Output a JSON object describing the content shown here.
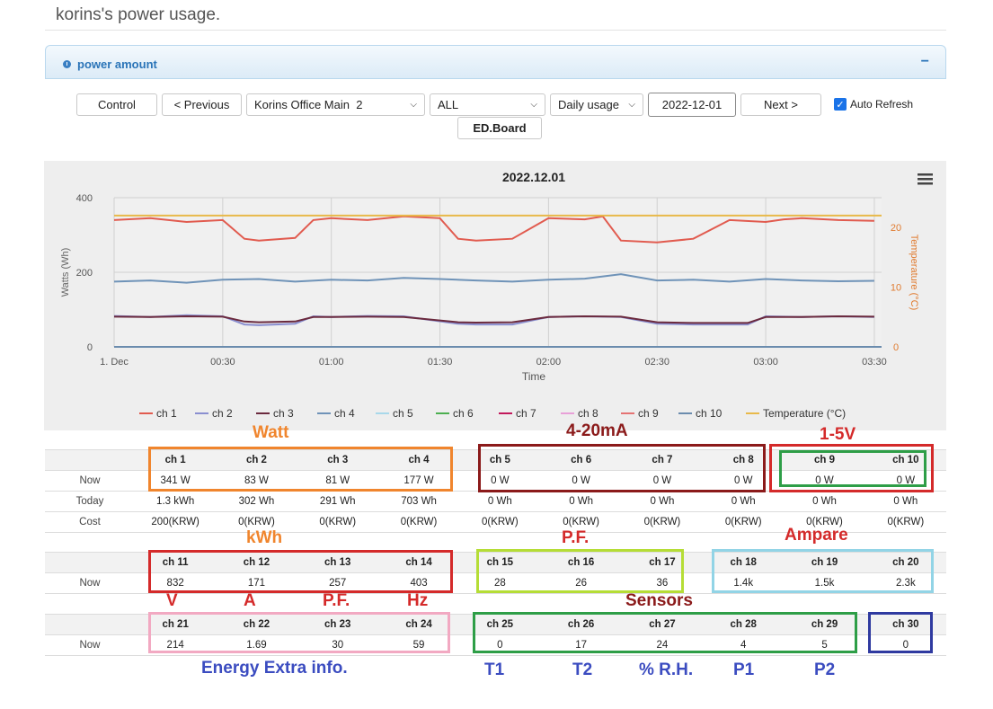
{
  "page": {
    "title": "korins's power usage."
  },
  "panel": {
    "title": "power amount",
    "collapse": "−"
  },
  "controls": {
    "control": "Control",
    "previous": "< Previous",
    "site": "Korins Office Main  2",
    "channel": "ALL",
    "mode": "Daily usage",
    "date": "2022-12-01",
    "next": "Next >",
    "auto_refresh": "Auto Refresh",
    "auto_refresh_checked": true,
    "edboard": "ED.Board"
  },
  "chart_data": {
    "type": "line",
    "title": "2022.12.01",
    "xlabel": "Time",
    "ylabel": "Watts (Wh)",
    "y2label": "Temperature (°C)",
    "x_ticks": [
      "1. Dec",
      "00:30",
      "01:00",
      "01:30",
      "02:00",
      "02:30",
      "03:00",
      "03:30"
    ],
    "y_ticks": [
      0,
      200,
      400
    ],
    "y2_ticks": [
      0,
      10,
      20
    ],
    "ylim": [
      0,
      400
    ],
    "y2lim": [
      0,
      25
    ],
    "xlim_minutes": [
      0,
      212
    ],
    "grid": true,
    "legend_position": "bottom",
    "series": [
      {
        "name": "ch 1",
        "color": "#e15b4f",
        "axis": "left",
        "x": [
          0,
          10,
          20,
          30,
          36,
          40,
          50,
          55,
          60,
          70,
          80,
          90,
          95,
          100,
          110,
          120,
          130,
          135,
          140,
          150,
          160,
          170,
          180,
          185,
          190,
          200,
          210
        ],
        "y": [
          340,
          345,
          335,
          340,
          290,
          285,
          292,
          340,
          345,
          340,
          350,
          345,
          290,
          285,
          290,
          345,
          342,
          350,
          285,
          280,
          290,
          340,
          335,
          342,
          345,
          340,
          338
        ]
      },
      {
        "name": "ch 2",
        "color": "#8a8fd0",
        "axis": "left",
        "x": [
          0,
          10,
          20,
          30,
          36,
          40,
          50,
          55,
          60,
          70,
          80,
          95,
          100,
          110,
          120,
          130,
          140,
          150,
          160,
          175,
          180,
          190,
          200,
          210
        ],
        "y": [
          83,
          80,
          85,
          82,
          60,
          58,
          62,
          82,
          80,
          83,
          82,
          62,
          60,
          60,
          80,
          82,
          80,
          62,
          60,
          60,
          82,
          80,
          82,
          80
        ]
      },
      {
        "name": "ch 3",
        "color": "#6b2a3e",
        "axis": "left",
        "x": [
          0,
          10,
          20,
          30,
          36,
          40,
          50,
          55,
          60,
          70,
          80,
          95,
          100,
          110,
          120,
          130,
          140,
          150,
          160,
          175,
          180,
          190,
          200,
          210
        ],
        "y": [
          81,
          80,
          82,
          81,
          68,
          66,
          68,
          80,
          80,
          81,
          80,
          66,
          65,
          66,
          80,
          82,
          81,
          66,
          64,
          64,
          80,
          80,
          82,
          81
        ]
      },
      {
        "name": "ch 4",
        "color": "#6f93b8",
        "axis": "left",
        "x": [
          0,
          10,
          20,
          30,
          40,
          50,
          60,
          70,
          80,
          90,
          100,
          110,
          120,
          130,
          140,
          150,
          160,
          170,
          180,
          190,
          200,
          210
        ],
        "y": [
          175,
          178,
          172,
          180,
          182,
          175,
          180,
          178,
          185,
          182,
          178,
          175,
          180,
          183,
          195,
          178,
          180,
          175,
          182,
          178,
          176,
          177
        ]
      },
      {
        "name": "ch 5",
        "color": "#a8d8ea",
        "axis": "left",
        "x": [
          0,
          212
        ],
        "y": [
          0,
          0
        ]
      },
      {
        "name": "ch 6",
        "color": "#4caf50",
        "axis": "left",
        "x": [
          0,
          212
        ],
        "y": [
          0,
          0
        ]
      },
      {
        "name": "ch 7",
        "color": "#c2185b",
        "axis": "left",
        "x": [
          0,
          212
        ],
        "y": [
          0,
          0
        ]
      },
      {
        "name": "ch 8",
        "color": "#e8a0d8",
        "axis": "left",
        "x": [
          0,
          212
        ],
        "y": [
          0,
          0
        ]
      },
      {
        "name": "ch 9",
        "color": "#e57373",
        "axis": "left",
        "x": [
          0,
          212
        ],
        "y": [
          0,
          0
        ]
      },
      {
        "name": "ch 10",
        "color": "#6b8cae",
        "axis": "left",
        "x": [
          0,
          212
        ],
        "y": [
          0,
          0
        ]
      },
      {
        "name": "Temperature (°C)",
        "color": "#e8b94a",
        "axis": "right",
        "x": [
          0,
          40,
          80,
          120,
          160,
          212
        ],
        "y": [
          22,
          22,
          22,
          22,
          22,
          22
        ]
      }
    ]
  },
  "table1": {
    "headers": [
      "",
      "ch 1",
      "ch 2",
      "ch 3",
      "ch 4",
      "ch 5",
      "ch 6",
      "ch 7",
      "ch 8",
      "ch 9",
      "ch 10"
    ],
    "rows": [
      [
        "Now",
        "341 W",
        "83 W",
        "81 W",
        "177 W",
        "0 W",
        "0 W",
        "0 W",
        "0 W",
        "0 W",
        "0 W"
      ],
      [
        "Today",
        "1.3 kWh",
        "302 Wh",
        "291 Wh",
        "703 Wh",
        "0 Wh",
        "0 Wh",
        "0 Wh",
        "0 Wh",
        "0 Wh",
        "0 Wh"
      ],
      [
        "Cost",
        "200(KRW)",
        "0(KRW)",
        "0(KRW)",
        "0(KRW)",
        "0(KRW)",
        "0(KRW)",
        "0(KRW)",
        "0(KRW)",
        "0(KRW)",
        "0(KRW)"
      ]
    ]
  },
  "table2": {
    "headers": [
      "",
      "ch 11",
      "ch 12",
      "ch 13",
      "ch 14",
      "ch 15",
      "ch 16",
      "ch 17",
      "ch 18",
      "ch 19",
      "ch 20"
    ],
    "rows": [
      [
        "Now",
        "832",
        "171",
        "257",
        "403",
        "28",
        "26",
        "36",
        "1.4k",
        "1.5k",
        "2.3k"
      ]
    ]
  },
  "table3": {
    "headers": [
      "",
      "ch 21",
      "ch 22",
      "ch 23",
      "ch 24",
      "ch 25",
      "ch 26",
      "ch 27",
      "ch 28",
      "ch 29",
      "ch 30"
    ],
    "rows": [
      [
        "Now",
        "214",
        "1.69",
        "30",
        "59",
        "0",
        "17",
        "24",
        "4",
        "5",
        "0"
      ]
    ]
  },
  "annotations": {
    "watt": "Watt",
    "ma": "4-20mA",
    "v15": "1-5V",
    "kwh": "kWh",
    "pf_top": "P.F.",
    "ampare": "Ampare",
    "v": "V",
    "a": "A",
    "pf": "P.F.",
    "hz": "Hz",
    "sensors": "Sensors",
    "energy": "Energy Extra info.",
    "t1": "T1",
    "t2": "T2",
    "rh": "% R.H.",
    "p1": "P1",
    "p2": "P2"
  },
  "colors": {
    "orange": "#f0852d",
    "maroon": "#8b1a1a",
    "red": "#d42a2a",
    "green": "#2e9e47",
    "lime": "#b5dd36",
    "lightblue": "#92d4e6",
    "pink": "#f2a9c2",
    "navy": "#2f3aa0",
    "blue": "#3b4cc0"
  }
}
